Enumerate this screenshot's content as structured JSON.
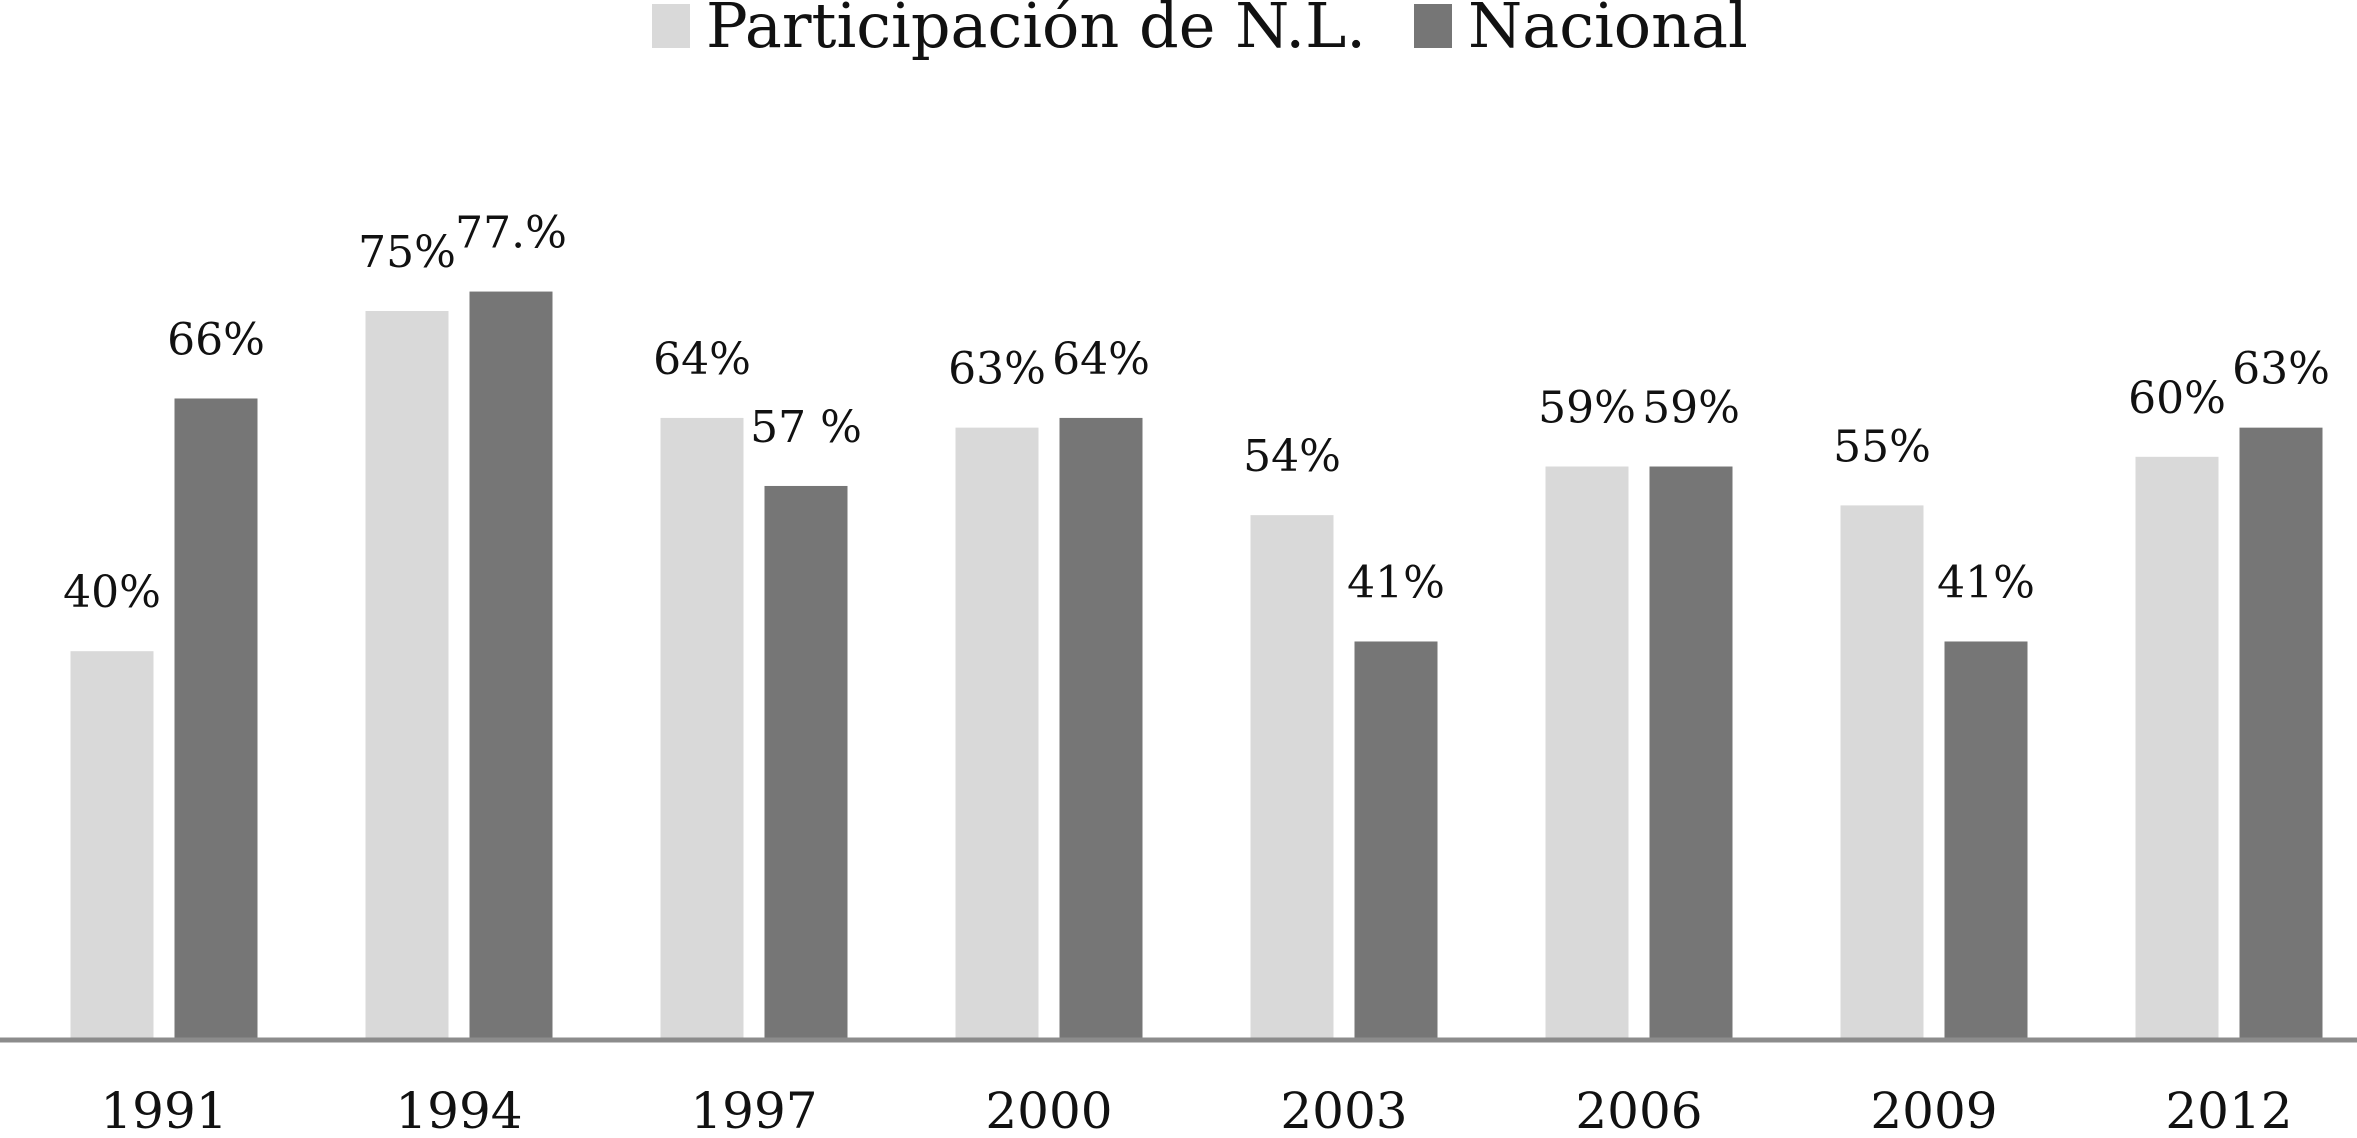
{
  "chart_data": {
    "type": "bar",
    "categories": [
      "1991",
      "1994",
      "1997",
      "2000",
      "2003",
      "2006",
      "2009",
      "2012"
    ],
    "series": [
      {
        "name": "Participación de N.L.",
        "values": [
          40,
          75,
          64,
          63,
          54,
          59,
          55,
          60
        ],
        "labels": [
          "40%",
          "75%",
          "64%",
          "63%",
          "54%",
          "59%",
          "55%",
          "60%"
        ],
        "color": "#d9d9d9"
      },
      {
        "name": "Nacional",
        "values": [
          66,
          77,
          57,
          64,
          41,
          59,
          41,
          63
        ],
        "labels": [
          "66%",
          "77.%",
          "57 %",
          "64%",
          "41%",
          "59%",
          "41%",
          "63%"
        ],
        "color": "#767676"
      }
    ],
    "title": "",
    "xlabel": "",
    "ylabel": "",
    "ylim": [
      0,
      100
    ],
    "grid": false,
    "legend": "top-center",
    "axis_color": "#8c8c8c"
  }
}
